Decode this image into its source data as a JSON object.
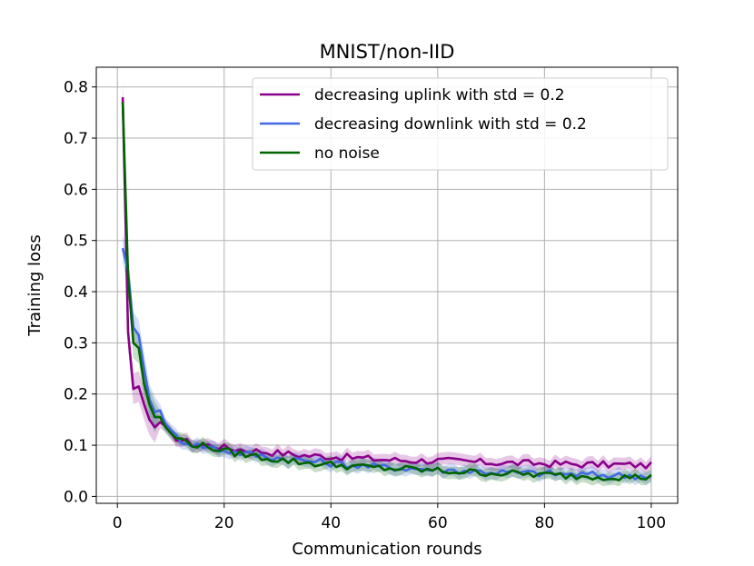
{
  "chart_data": {
    "type": "line",
    "title": "MNIST/non-IID",
    "xlabel": "Communication rounds",
    "ylabel": "Training loss",
    "xlim": [
      -3.95,
      104.95
    ],
    "ylim": [
      -0.0135,
      0.8385
    ],
    "xticks": [
      0,
      20,
      40,
      60,
      80,
      100
    ],
    "xtick_labels": [
      "0",
      "20",
      "40",
      "60",
      "80",
      "100"
    ],
    "yticks": [
      0.0,
      0.1,
      0.2,
      0.3,
      0.4,
      0.5,
      0.6,
      0.7,
      0.8
    ],
    "ytick_labels": [
      "0.0",
      "0.1",
      "0.2",
      "0.3",
      "0.4",
      "0.5",
      "0.6",
      "0.7",
      "0.8"
    ],
    "grid": true,
    "legend_position": "top-right",
    "series": [
      {
        "name": "decreasing uplink with std = 0.2",
        "color": "#8b008b",
        "band_spread": 0.012,
        "anchors": [
          [
            1,
            0.78
          ],
          [
            2,
            0.32
          ],
          [
            3,
            0.21
          ],
          [
            4,
            0.215
          ],
          [
            5,
            0.18
          ],
          [
            6,
            0.15
          ],
          [
            7,
            0.135
          ],
          [
            8,
            0.145
          ],
          [
            10,
            0.12
          ],
          [
            12,
            0.11
          ],
          [
            15,
            0.1
          ],
          [
            18,
            0.1
          ],
          [
            20,
            0.095
          ],
          [
            25,
            0.09
          ],
          [
            30,
            0.085
          ],
          [
            35,
            0.08
          ],
          [
            40,
            0.078
          ],
          [
            45,
            0.075
          ],
          [
            50,
            0.072
          ],
          [
            55,
            0.07
          ],
          [
            60,
            0.07
          ],
          [
            65,
            0.068
          ],
          [
            70,
            0.066
          ],
          [
            75,
            0.065
          ],
          [
            80,
            0.064
          ],
          [
            85,
            0.063
          ],
          [
            90,
            0.062
          ],
          [
            95,
            0.062
          ],
          [
            100,
            0.06
          ]
        ]
      },
      {
        "name": "decreasing downlink with std = 0.2",
        "color": "#4169e1",
        "band_spread": 0.012,
        "anchors": [
          [
            1,
            0.485
          ],
          [
            2,
            0.44
          ],
          [
            3,
            0.33
          ],
          [
            4,
            0.315
          ],
          [
            5,
            0.25
          ],
          [
            6,
            0.19
          ],
          [
            7,
            0.165
          ],
          [
            8,
            0.168
          ],
          [
            10,
            0.125
          ],
          [
            12,
            0.11
          ],
          [
            15,
            0.1
          ],
          [
            18,
            0.095
          ],
          [
            20,
            0.09
          ],
          [
            25,
            0.082
          ],
          [
            30,
            0.075
          ],
          [
            35,
            0.07
          ],
          [
            40,
            0.065
          ],
          [
            45,
            0.06
          ],
          [
            50,
            0.057
          ],
          [
            55,
            0.055
          ],
          [
            60,
            0.052
          ],
          [
            65,
            0.05
          ],
          [
            70,
            0.048
          ],
          [
            75,
            0.046
          ],
          [
            80,
            0.045
          ],
          [
            85,
            0.043
          ],
          [
            90,
            0.042
          ],
          [
            95,
            0.041
          ],
          [
            100,
            0.04
          ]
        ]
      },
      {
        "name": "no noise",
        "color": "#006400",
        "band_spread": 0.012,
        "anchors": [
          [
            1,
            0.77
          ],
          [
            2,
            0.43
          ],
          [
            3,
            0.3
          ],
          [
            4,
            0.29
          ],
          [
            5,
            0.22
          ],
          [
            6,
            0.18
          ],
          [
            7,
            0.155
          ],
          [
            8,
            0.155
          ],
          [
            10,
            0.12
          ],
          [
            12,
            0.11
          ],
          [
            15,
            0.1
          ],
          [
            18,
            0.095
          ],
          [
            20,
            0.088
          ],
          [
            25,
            0.08
          ],
          [
            30,
            0.072
          ],
          [
            35,
            0.066
          ],
          [
            40,
            0.062
          ],
          [
            45,
            0.058
          ],
          [
            50,
            0.055
          ],
          [
            55,
            0.053
          ],
          [
            60,
            0.05
          ],
          [
            65,
            0.048
          ],
          [
            70,
            0.046
          ],
          [
            75,
            0.044
          ],
          [
            80,
            0.042
          ],
          [
            85,
            0.04
          ],
          [
            90,
            0.039
          ],
          [
            95,
            0.038
          ],
          [
            100,
            0.037
          ]
        ]
      }
    ]
  }
}
